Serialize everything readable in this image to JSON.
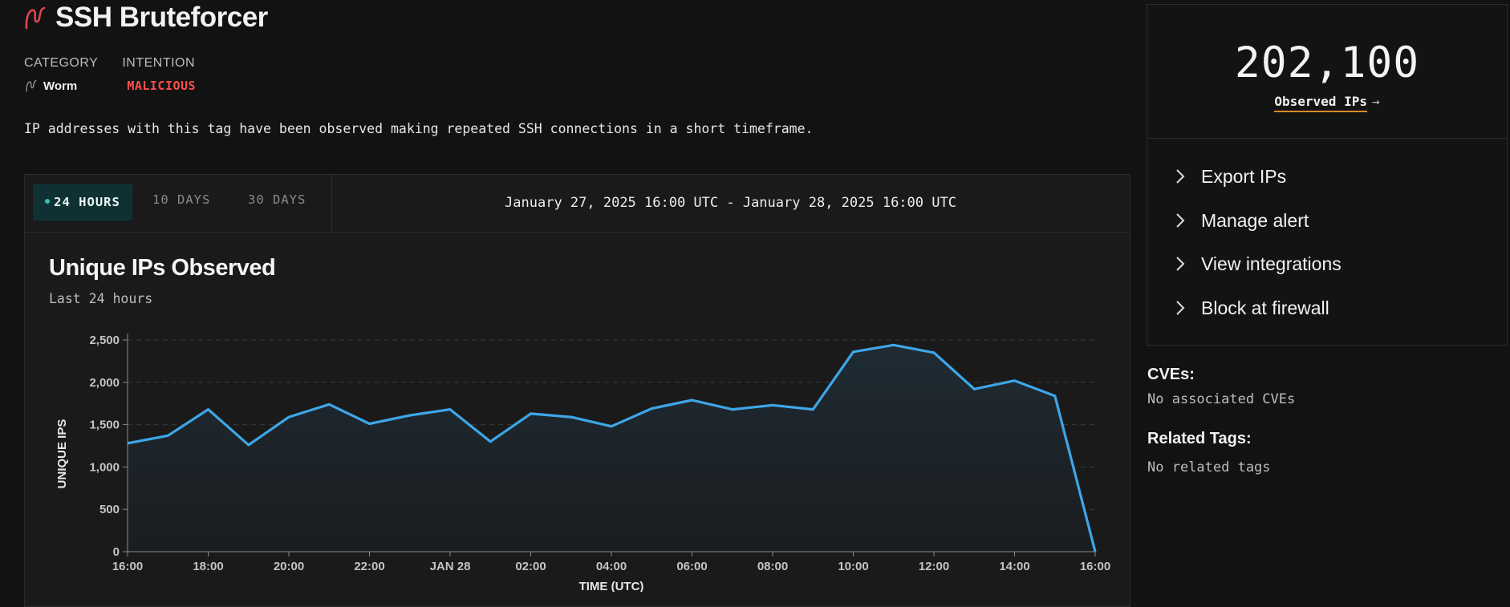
{
  "header": {
    "title": "SSH Bruteforcer",
    "category_label": "CATEGORY",
    "category_value": "Worm",
    "intention_label": "INTENTION",
    "intention_value": "MALICIOUS",
    "description": "IP addresses with this tag have been observed making repeated SSH connections in a short timeframe."
  },
  "time_tabs": [
    {
      "label": "24 HOURS",
      "active": true
    },
    {
      "label": "10 DAYS",
      "active": false
    },
    {
      "label": "30 DAYS",
      "active": false
    }
  ],
  "date_range": "January 27, 2025 16:00 UTC - January 28, 2025 16:00 UTC",
  "chart_heading": {
    "title": "Unique IPs Observed",
    "subtitle": "Last 24 hours"
  },
  "chart_data": {
    "type": "area",
    "title": "Unique IPs Observed",
    "subtitle": "Last 24 hours",
    "xlabel": "TIME (UTC)",
    "ylabel": "UNIQUE IPS",
    "ylim": [
      0,
      2500
    ],
    "yticks": [
      "0",
      "500",
      "1,000",
      "1,500",
      "2,000",
      "2,500"
    ],
    "ytick_values": [
      0,
      500,
      1000,
      1500,
      2000,
      2500
    ],
    "xtick_labels": [
      "16:00",
      "18:00",
      "20:00",
      "22:00",
      "JAN 28",
      "02:00",
      "04:00",
      "06:00",
      "08:00",
      "10:00",
      "12:00",
      "14:00",
      "16:00"
    ],
    "x": [
      "16:00",
      "17:00",
      "18:00",
      "19:00",
      "20:00",
      "21:00",
      "22:00",
      "23:00",
      "00:00",
      "01:00",
      "02:00",
      "03:00",
      "04:00",
      "05:00",
      "06:00",
      "07:00",
      "08:00",
      "09:00",
      "10:00",
      "11:00",
      "12:00",
      "13:00",
      "14:00",
      "15:00",
      "16:00"
    ],
    "values": [
      1280,
      1370,
      1680,
      1260,
      1590,
      1740,
      1510,
      1610,
      1680,
      1300,
      1630,
      1590,
      1480,
      1690,
      1790,
      1680,
      1730,
      1680,
      2360,
      2440,
      2350,
      1920,
      2020,
      1840,
      0
    ],
    "grid": true,
    "line_color": "#3ea6e8"
  },
  "stats": {
    "observed_count": "202,100",
    "observed_label": "Observed IPs",
    "arrow_icon": "arrow-right-icon"
  },
  "actions": [
    {
      "label": "Export IPs",
      "icon": "chevron-right-icon"
    },
    {
      "label": "Manage alert",
      "icon": "chevron-right-icon"
    },
    {
      "label": "View integrations",
      "icon": "chevron-right-icon"
    },
    {
      "label": "Block at firewall",
      "icon": "chevron-right-icon"
    }
  ],
  "cves": {
    "heading": "CVEs:",
    "text": "No associated CVEs"
  },
  "related_tags": {
    "heading": "Related Tags:",
    "text": "No related tags"
  },
  "colors": {
    "accent": "#3ea6e8",
    "malicious": "#ff4d4d",
    "tab_active_bg": "#0f3133",
    "link_underline": "#d98a2b",
    "logo": "#e0474c"
  }
}
